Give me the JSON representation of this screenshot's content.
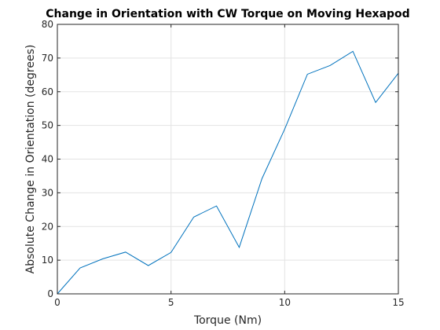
{
  "chart_data": {
    "type": "line",
    "title": "Change in Orientation with CW Torque on Moving Hexapod",
    "xlabel": "Torque (Nm)",
    "ylabel": "Absolute Change in Orientation (degrees)",
    "xlim": [
      0,
      15
    ],
    "ylim": [
      0,
      80
    ],
    "xticks": [
      0,
      5,
      10,
      15
    ],
    "yticks": [
      0,
      10,
      20,
      30,
      40,
      50,
      60,
      70,
      80
    ],
    "grid": true,
    "series": [
      {
        "color": "#0072BD",
        "x": [
          0,
          1,
          2,
          3,
          4,
          5,
          6,
          7,
          8,
          9,
          10,
          11,
          12,
          13,
          14,
          15
        ],
        "y": [
          0,
          7.7,
          10.4,
          12.4,
          8.4,
          12.3,
          22.8,
          26.1,
          13.8,
          34.2,
          48.9,
          65.2,
          67.8,
          72.0,
          56.8,
          65.5
        ]
      }
    ]
  }
}
